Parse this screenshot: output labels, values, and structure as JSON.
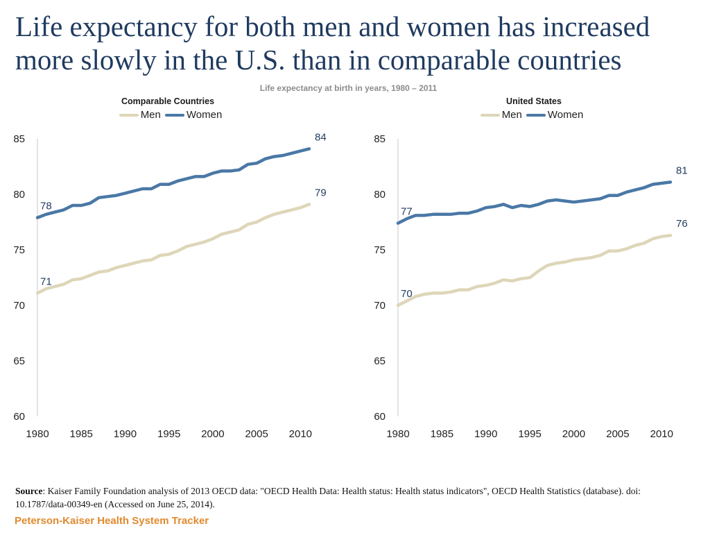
{
  "title": "Life expectancy for both men and women has increased more slowly in the U.S. than in comparable countries",
  "subtitle": "Life expectancy at birth in years, 1980 – 2011",
  "colors": {
    "men": "#ddd6b8",
    "women": "#4a78a6",
    "title": "#1f3a5f",
    "footer": "#e08a2e"
  },
  "chart_data": [
    {
      "type": "line",
      "title": "Comparable Countries",
      "x": [
        1980,
        1981,
        1982,
        1983,
        1984,
        1985,
        1986,
        1987,
        1988,
        1989,
        1990,
        1991,
        1992,
        1993,
        1994,
        1995,
        1996,
        1997,
        1998,
        1999,
        2000,
        2001,
        2002,
        2003,
        2004,
        2005,
        2006,
        2007,
        2008,
        2009,
        2010,
        2011
      ],
      "xticks": [
        "1980",
        "1985",
        "1990",
        "1995",
        "2000",
        "2005",
        "2010"
      ],
      "yticks": [
        "60",
        "65",
        "70",
        "75",
        "80",
        "85"
      ],
      "ylim": [
        60,
        85
      ],
      "legend": [
        "Men",
        "Women"
      ],
      "series": [
        {
          "name": "Men",
          "key": "men",
          "values": [
            71.1,
            71.5,
            71.7,
            71.9,
            72.3,
            72.4,
            72.7,
            73.0,
            73.1,
            73.4,
            73.6,
            73.8,
            74.0,
            74.1,
            74.5,
            74.6,
            74.9,
            75.3,
            75.5,
            75.7,
            76.0,
            76.4,
            76.6,
            76.8,
            77.3,
            77.5,
            77.9,
            78.2,
            78.4,
            78.6,
            78.8,
            79.1
          ],
          "start_label": "71",
          "end_label": "79"
        },
        {
          "name": "Women",
          "key": "women",
          "values": [
            77.9,
            78.2,
            78.4,
            78.6,
            79.0,
            79.0,
            79.2,
            79.7,
            79.8,
            79.9,
            80.1,
            80.3,
            80.5,
            80.5,
            80.9,
            80.9,
            81.2,
            81.4,
            81.6,
            81.6,
            81.9,
            82.1,
            82.1,
            82.2,
            82.7,
            82.8,
            83.2,
            83.4,
            83.5,
            83.7,
            83.9,
            84.1
          ],
          "start_label": "78",
          "end_label": "84"
        }
      ]
    },
    {
      "type": "line",
      "title": "United States",
      "x": [
        1980,
        1981,
        1982,
        1983,
        1984,
        1985,
        1986,
        1987,
        1988,
        1989,
        1990,
        1991,
        1992,
        1993,
        1994,
        1995,
        1996,
        1997,
        1998,
        1999,
        2000,
        2001,
        2002,
        2003,
        2004,
        2005,
        2006,
        2007,
        2008,
        2009,
        2010,
        2011
      ],
      "xticks": [
        "1980",
        "1985",
        "1990",
        "1995",
        "2000",
        "2005",
        "2010"
      ],
      "yticks": [
        "60",
        "65",
        "70",
        "75",
        "80",
        "85"
      ],
      "ylim": [
        60,
        85
      ],
      "legend": [
        "Men",
        "Women"
      ],
      "series": [
        {
          "name": "Men",
          "key": "men",
          "values": [
            70.0,
            70.4,
            70.8,
            71.0,
            71.1,
            71.1,
            71.2,
            71.4,
            71.4,
            71.7,
            71.8,
            72.0,
            72.3,
            72.2,
            72.4,
            72.5,
            73.1,
            73.6,
            73.8,
            73.9,
            74.1,
            74.2,
            74.3,
            74.5,
            74.9,
            74.9,
            75.1,
            75.4,
            75.6,
            76.0,
            76.2,
            76.3
          ],
          "start_label": "70",
          "end_label": "76"
        },
        {
          "name": "Women",
          "key": "women",
          "values": [
            77.4,
            77.8,
            78.1,
            78.1,
            78.2,
            78.2,
            78.2,
            78.3,
            78.3,
            78.5,
            78.8,
            78.9,
            79.1,
            78.8,
            79.0,
            78.9,
            79.1,
            79.4,
            79.5,
            79.4,
            79.3,
            79.4,
            79.5,
            79.6,
            79.9,
            79.9,
            80.2,
            80.4,
            80.6,
            80.9,
            81.0,
            81.1
          ],
          "start_label": "77",
          "end_label": "81"
        }
      ]
    }
  ],
  "source": {
    "label": "Source",
    "text": ": Kaiser Family Foundation analysis of 2013 OECD data: \"OECD Health Data: Health status: Health status indicators\", OECD Health Statistics (database).  doi: 10.1787/data-00349-en (Accessed on June 25, 2014)."
  },
  "footer": "Peterson-Kaiser Health System Tracker"
}
